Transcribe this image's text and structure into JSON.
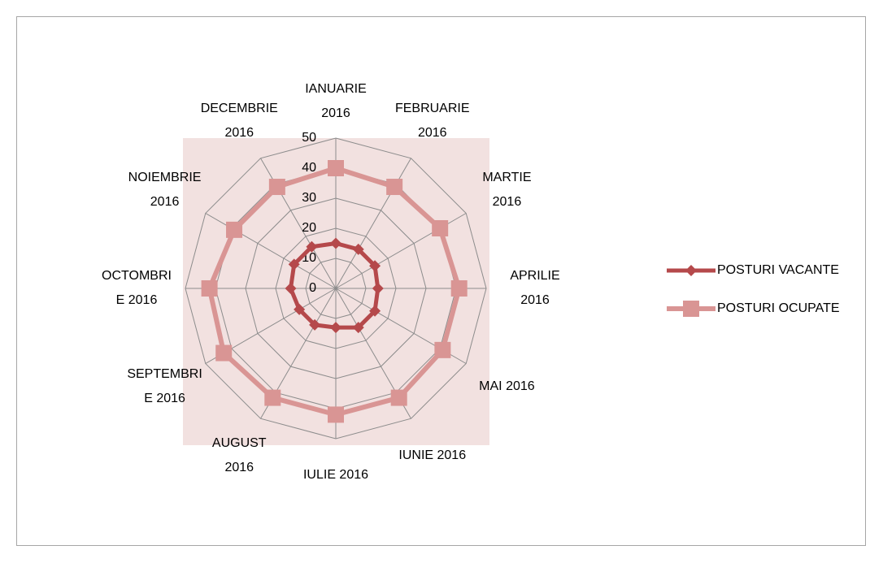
{
  "chart_data": {
    "type": "radar",
    "categories": [
      "IANUARIE 2016",
      "FEBRUARIE 2016",
      "MARTIE 2016",
      "APRILIE 2016",
      "MAI 2016",
      "IUNIE 2016",
      "IULIE 2016",
      "AUGUST 2016",
      "SEPTEMBRIE 2016",
      "OCTOMBRIE 2016",
      "NOIEMBRIE 2016",
      "DECEMBRIE 2016"
    ],
    "series": [
      {
        "name": "POSTURI VACANTE",
        "color": "#b5494b",
        "marker": "diamond",
        "values": [
          15,
          15,
          15,
          14,
          15,
          15,
          13,
          14,
          14,
          15,
          16,
          16
        ]
      },
      {
        "name": "POSTURI OCUPATE",
        "color": "#d99594",
        "marker": "square",
        "values": [
          40,
          39,
          40,
          41,
          41,
          42,
          42,
          42,
          43,
          42,
          39,
          39
        ]
      }
    ],
    "ylim": [
      0,
      50
    ],
    "yticks": [
      0,
      10,
      20,
      30,
      40,
      50
    ],
    "grid": true,
    "legend": "right"
  }
}
